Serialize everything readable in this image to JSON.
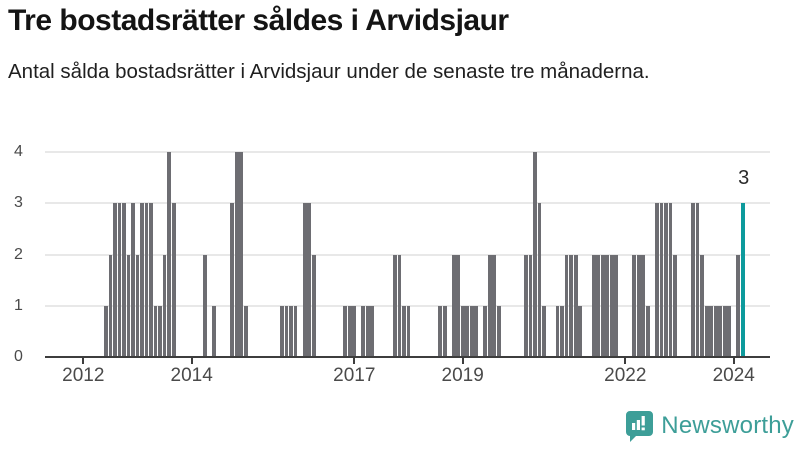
{
  "header": {
    "title": "Tre bostadsrätter såldes i Arvidsjaur",
    "subtitle": "Antal sålda bostadsrätter i Arvidsjaur under de senaste tre månaderna."
  },
  "footer": {
    "brand_name": "Newsworthy"
  },
  "annotation": {
    "last_bar_label": "3"
  },
  "chart_data": {
    "type": "bar",
    "title": "Tre bostadsrätter såldes i Arvidsjaur",
    "subtitle": "Antal sålda bostadsrätter i Arvidsjaur under de senaste tre månaderna.",
    "xlabel": "",
    "ylabel": "",
    "start_month": "2012-06",
    "end_month": "2024-03",
    "frequency": "monthly",
    "values": [
      1,
      2,
      3,
      3,
      3,
      2,
      3,
      2,
      3,
      3,
      3,
      1,
      1,
      2,
      4,
      3,
      0,
      0,
      0,
      0,
      0,
      0,
      2,
      0,
      1,
      0,
      0,
      0,
      3,
      4,
      4,
      1,
      0,
      0,
      0,
      0,
      0,
      0,
      0,
      1,
      1,
      1,
      1,
      0,
      3,
      3,
      2,
      0,
      0,
      0,
      0,
      0,
      0,
      1,
      1,
      1,
      0,
      1,
      1,
      1,
      0,
      0,
      0,
      0,
      2,
      2,
      1,
      1,
      0,
      0,
      0,
      0,
      0,
      0,
      1,
      1,
      0,
      2,
      2,
      1,
      1,
      1,
      1,
      0,
      1,
      2,
      2,
      1,
      0,
      0,
      0,
      0,
      0,
      2,
      2,
      4,
      3,
      1,
      0,
      0,
      1,
      1,
      2,
      2,
      2,
      1,
      0,
      0,
      2,
      2,
      2,
      2,
      2,
      2,
      0,
      0,
      0,
      2,
      2,
      2,
      1,
      0,
      3,
      3,
      3,
      3,
      2,
      0,
      0,
      0,
      3,
      3,
      2,
      1,
      1,
      1,
      1,
      1,
      1,
      0,
      2,
      3
    ],
    "last_value": 3,
    "last_value_label": "3",
    "ylim": [
      0,
      4
    ],
    "yticks": [
      0,
      1,
      2,
      3,
      4
    ],
    "xticks": [
      {
        "label": "2012",
        "month_index": 0
      },
      {
        "label": "2014",
        "month_index": 24
      },
      {
        "label": "2017",
        "month_index": 60
      },
      {
        "label": "2019",
        "month_index": 84
      },
      {
        "label": "2022",
        "month_index": 120
      },
      {
        "label": "2024",
        "month_index": 144
      }
    ],
    "grid": "horizontal",
    "legend": "none",
    "colors": {
      "bar": "#6d6d72",
      "highlight": "#0d9a9c",
      "gridline": "#e8e8e8",
      "axis": "#3d3d3d",
      "brand": "#3d9e98"
    }
  }
}
